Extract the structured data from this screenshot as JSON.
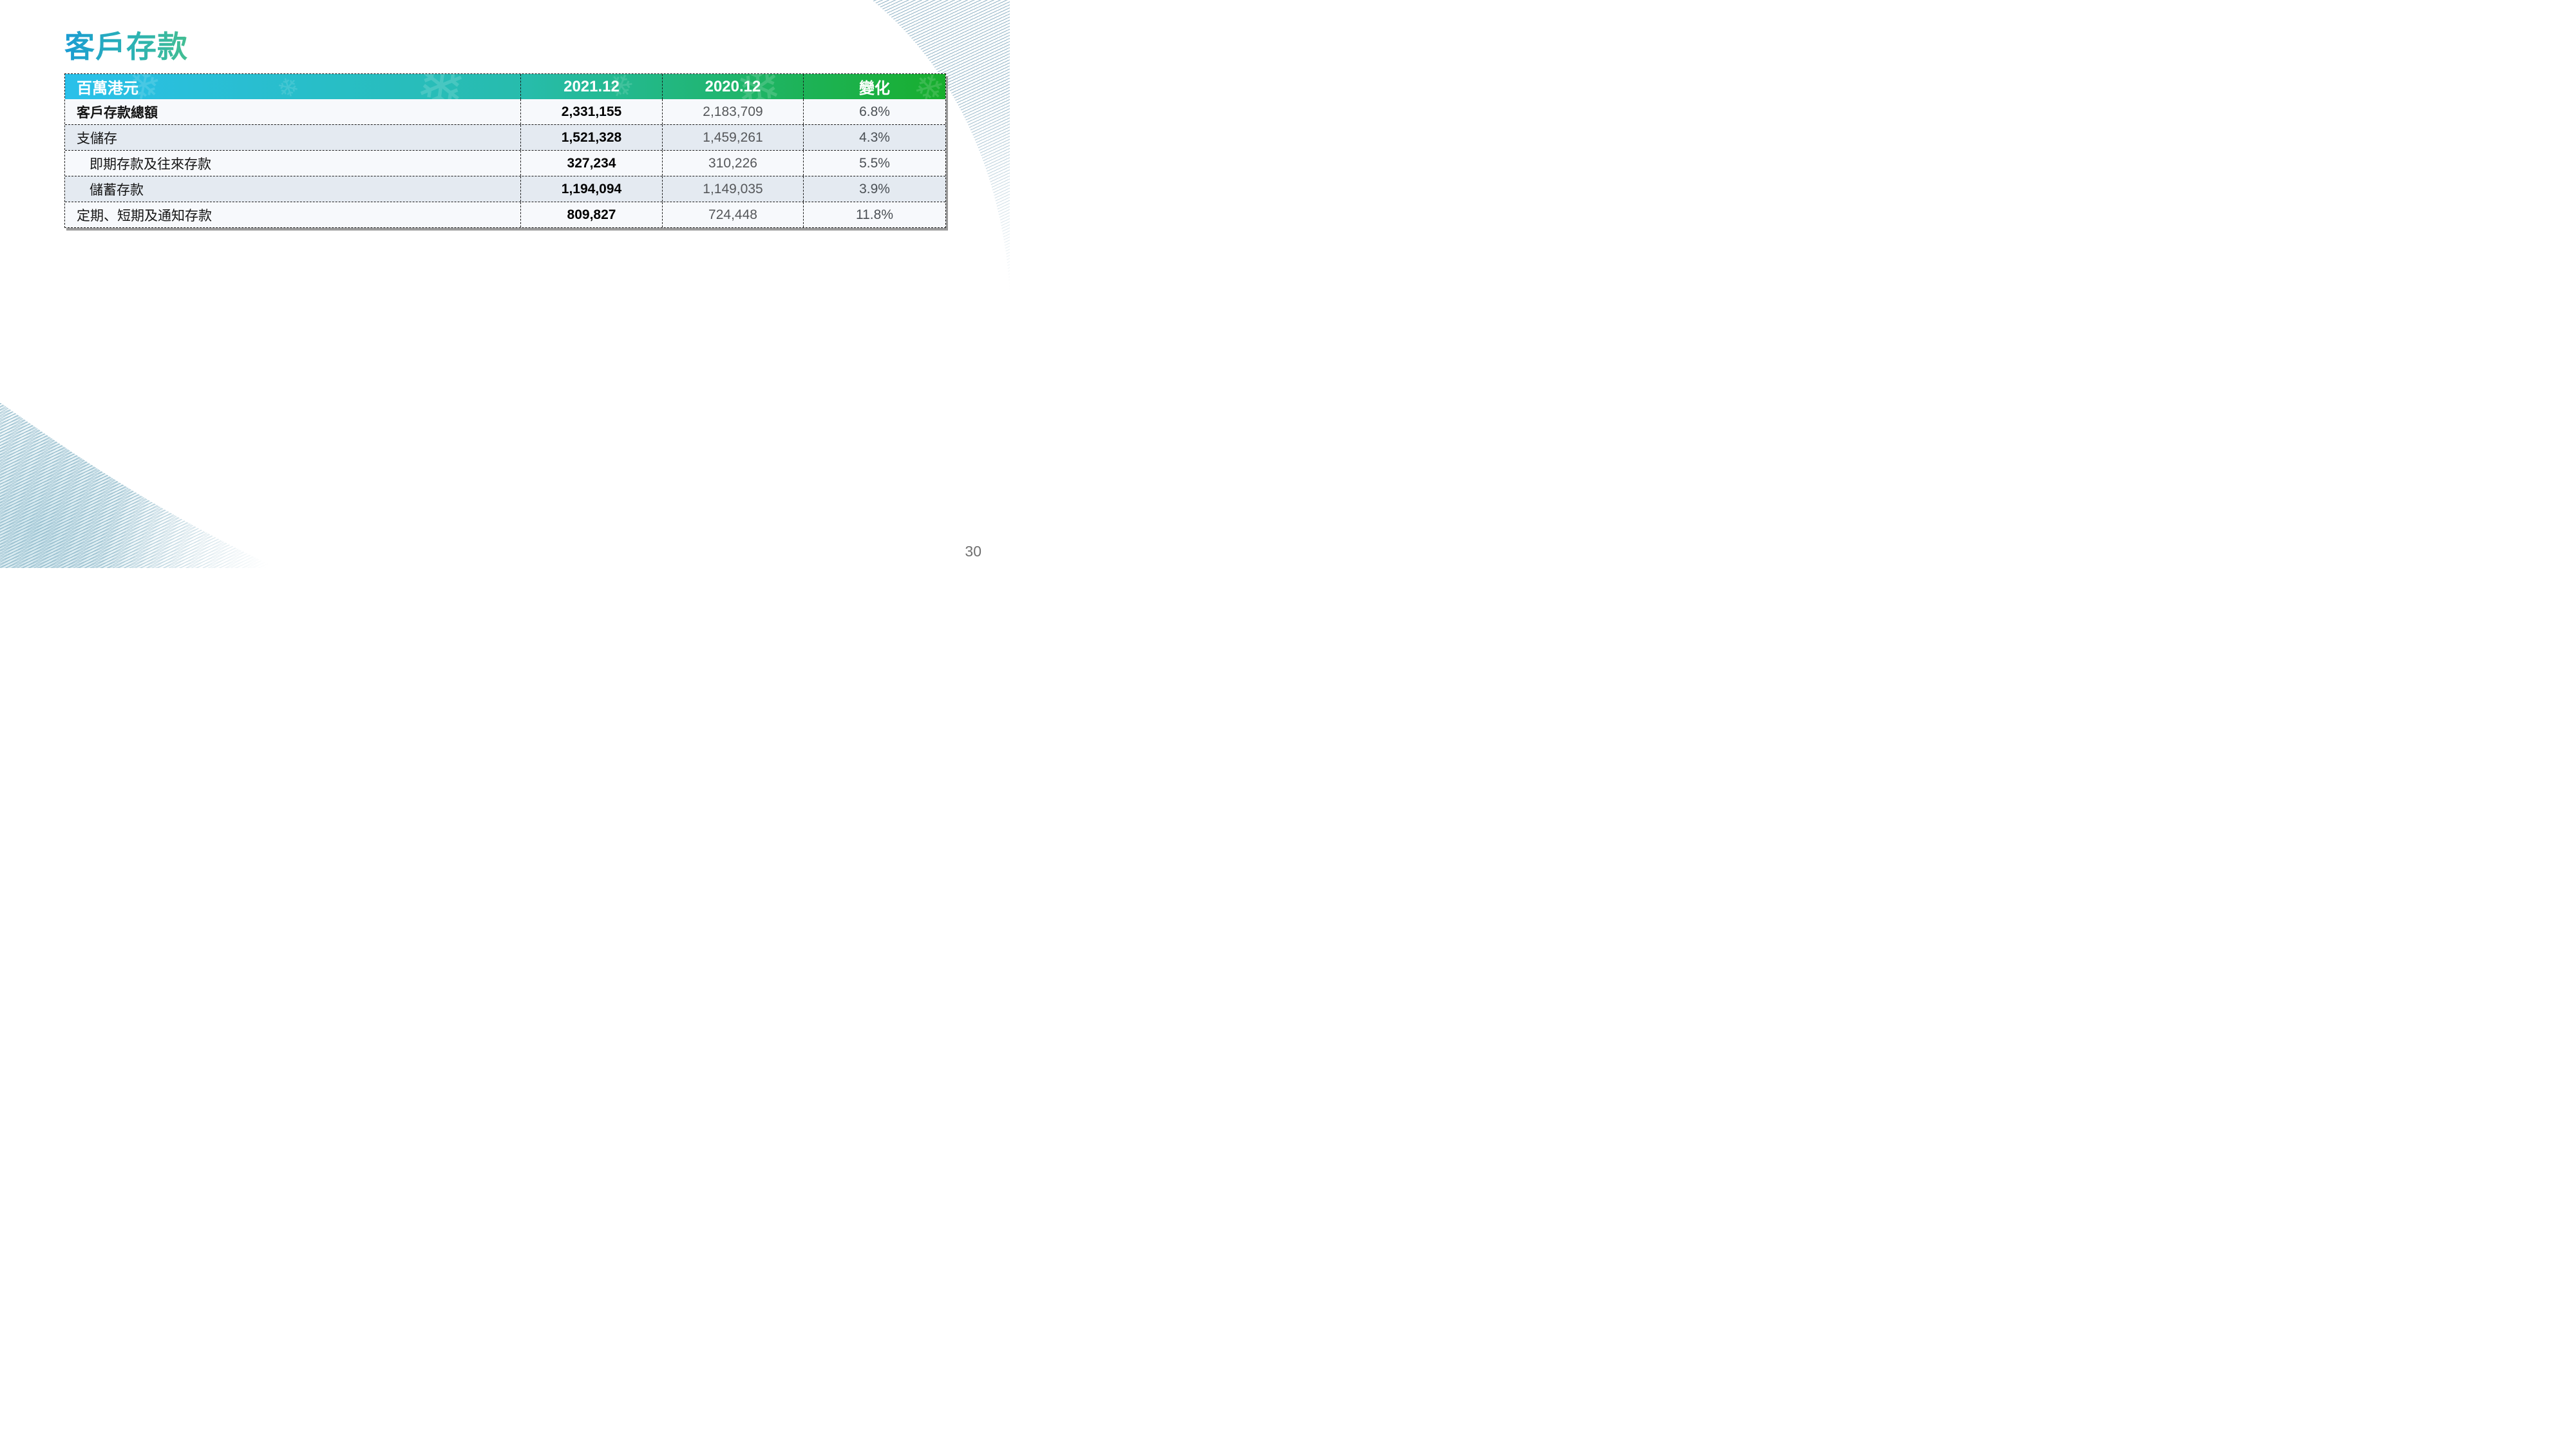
{
  "title": "客戶存款",
  "page_number": "30",
  "table": {
    "headers": [
      "百萬港元",
      "2021.12",
      "2020.12",
      "變化"
    ],
    "rows": [
      {
        "label": "客戶存款總額",
        "v2021": "2,331,155",
        "v2020": "2,183,709",
        "change": "6.8%"
      },
      {
        "label": "支儲存",
        "v2021": "1,521,328",
        "v2020": "1,459,261",
        "change": "4.3%"
      },
      {
        "label": "即期存款及往來存款",
        "v2021": "327,234",
        "v2020": "310,226",
        "change": "5.5%"
      },
      {
        "label": "儲蓄存款",
        "v2021": "1,194,094",
        "v2020": "1,149,035",
        "change": "3.9%"
      },
      {
        "label": "定期、短期及通知存款",
        "v2021": "809,827",
        "v2020": "724,448",
        "change": "11.8%"
      }
    ]
  },
  "icons": {
    "snowflake": "❄"
  },
  "colors": {
    "header_gradient_start": "#2AC0EA",
    "header_gradient_mid": "#27BCAC",
    "header_gradient_end": "#18AE2D",
    "title_gradient_start": "#1B9CD3",
    "title_gradient_end": "#43BE92",
    "row_odd_bg": "#F7F9FC",
    "row_even_bg": "#E4EAF1",
    "shadow": "#9B9B9B"
  }
}
